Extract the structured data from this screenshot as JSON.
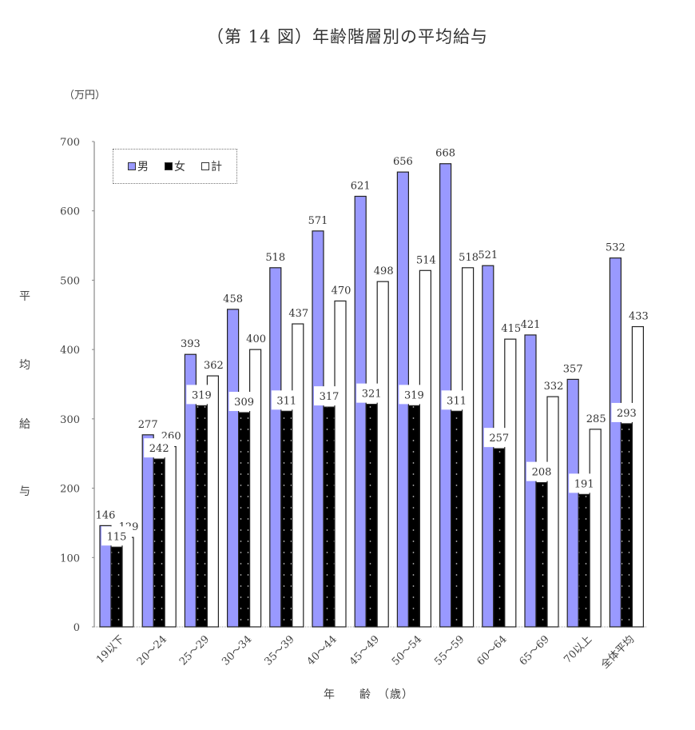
{
  "header": {
    "title": "（第 14 図）年齢階層別の平均給与",
    "unit": "（万円）"
  },
  "axes": {
    "ylabel_chars": [
      "平",
      "均",
      "給",
      "与"
    ],
    "xlabel": "年　　齢　（歳）"
  },
  "legend": [
    {
      "label": "男",
      "color": "#9999ff"
    },
    {
      "label": "女",
      "color": "#000000"
    },
    {
      "label": "計",
      "color": "#ffffff"
    }
  ],
  "chart_data": {
    "type": "bar",
    "title": "（第 14 図）年齢階層別の平均給与",
    "xlabel": "年齢（歳）",
    "ylabel": "平均給与（万円）",
    "ylim": [
      0,
      700
    ],
    "yticks": [
      0,
      100,
      200,
      300,
      400,
      500,
      600,
      700
    ],
    "grid": false,
    "legend_position": "top-left inside",
    "categories": [
      "19以下",
      "20～24",
      "25～29",
      "30～34",
      "35～39",
      "40～44",
      "45～49",
      "50～54",
      "55～59",
      "60～64",
      "65～69",
      "70以上",
      "全体平均"
    ],
    "series": [
      {
        "name": "男",
        "color": "#9999ff",
        "values": [
          146,
          277,
          393,
          458,
          518,
          571,
          621,
          656,
          668,
          521,
          421,
          357,
          532
        ]
      },
      {
        "name": "女",
        "color": "#000000",
        "values": [
          115,
          242,
          319,
          309,
          311,
          317,
          321,
          319,
          311,
          257,
          208,
          191,
          293
        ]
      },
      {
        "name": "計",
        "color": "#ffffff",
        "values": [
          129,
          260,
          362,
          400,
          437,
          470,
          498,
          514,
          518,
          415,
          332,
          285,
          433
        ]
      }
    ]
  }
}
